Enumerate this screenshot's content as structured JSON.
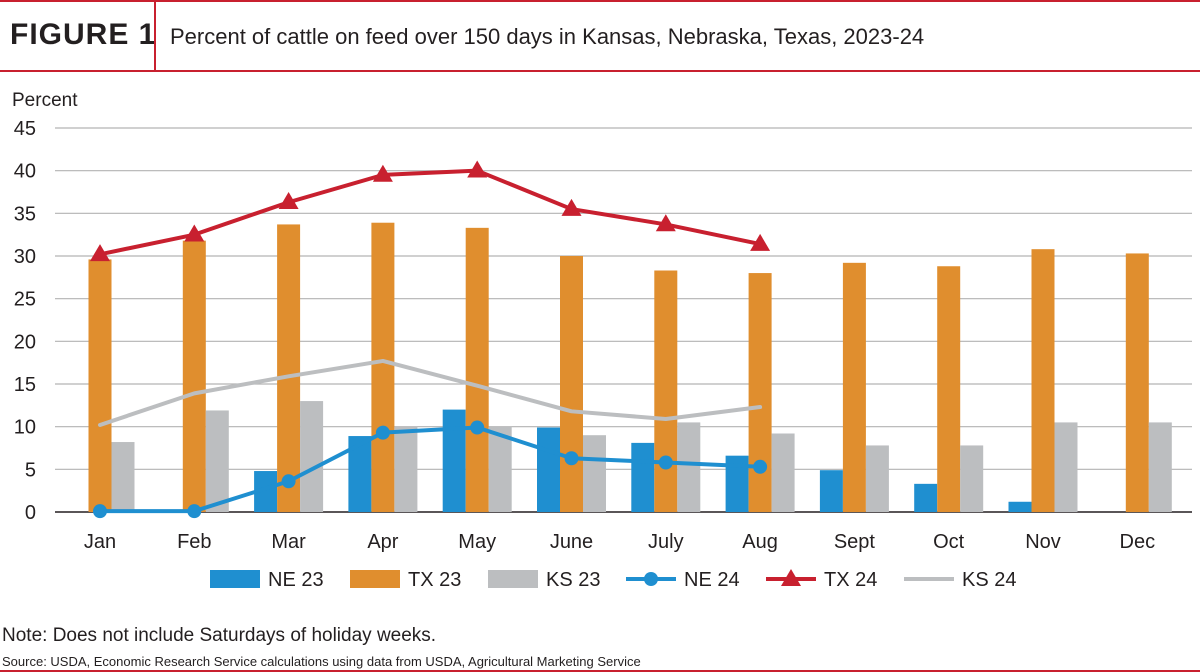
{
  "header": {
    "figure_label": "FIGURE 1",
    "title": "Percent of cattle on feed over 150 days in Kansas, Nebraska, Texas, 2023-24"
  },
  "note": "Note: Does not include Saturdays of holiday weeks.",
  "source": "Source: USDA, Economic Research Service calculations using data from USDA, Agricultural Marketing Service",
  "chart_data": {
    "type": "bar",
    "title": "Percent of cattle on feed over 150 days in Kansas, Nebraska, Texas, 2023-24",
    "ylabel": "Percent",
    "xlabel": "",
    "ylim": [
      0,
      45
    ],
    "yticks": [
      0,
      5,
      10,
      15,
      20,
      25,
      30,
      35,
      40,
      45
    ],
    "grid": true,
    "legend_position": "bottom",
    "categories": [
      "Jan",
      "Feb",
      "Mar",
      "Apr",
      "May",
      "June",
      "July",
      "Aug",
      "Sept",
      "Oct",
      "Nov",
      "Dec"
    ],
    "bar_series": [
      {
        "name": "NE 23",
        "color": "#1f8fd0",
        "values": [
          0,
          0,
          4.8,
          8.9,
          12.0,
          9.9,
          8.1,
          6.6,
          4.9,
          3.3,
          1.2,
          0
        ]
      },
      {
        "name": "TX 23",
        "color": "#e08e2e",
        "values": [
          29.6,
          31.8,
          33.7,
          33.9,
          33.3,
          30.0,
          28.3,
          28.0,
          29.2,
          28.8,
          30.8,
          30.3
        ]
      },
      {
        "name": "KS 23",
        "color": "#bcbec0",
        "values": [
          8.2,
          11.9,
          13.0,
          10.0,
          10.0,
          9.0,
          10.5,
          9.2,
          7.8,
          7.8,
          10.5,
          10.5
        ]
      }
    ],
    "line_series": [
      {
        "name": "NE 24",
        "color": "#1f8fd0",
        "marker": "circle",
        "values": [
          0.1,
          0.1,
          3.6,
          9.3,
          9.9,
          6.3,
          5.8,
          5.3
        ]
      },
      {
        "name": "TX 24",
        "color": "#c8202f",
        "marker": "triangle",
        "values": [
          30.2,
          32.5,
          36.3,
          39.5,
          40.0,
          35.5,
          33.7,
          31.4
        ]
      },
      {
        "name": "KS 24",
        "color": "#bcbec0",
        "marker": "none",
        "values": [
          10.2,
          13.9,
          15.9,
          17.7,
          14.8,
          11.8,
          10.9,
          12.3
        ]
      }
    ]
  }
}
